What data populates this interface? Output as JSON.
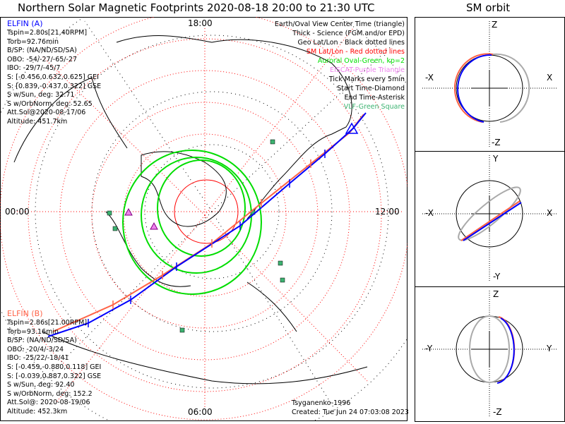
{
  "title": "Northern Solar Magnetic Footprints 2020-08-18 20:00 to 21:30 UTC",
  "sm_title": "SM orbit",
  "map": {
    "time_labels": {
      "top": "18:00",
      "left": "00:00",
      "right": "12:00",
      "bottom": "06:00"
    },
    "credit": "Tsyganenko-1996",
    "created": "Created: Tue Jun 24 07:03:08 2023"
  },
  "elfin_a": {
    "name": "ELFIN (A)",
    "lines": [
      "Tspin=2.80s[21.40RPM]",
      "Torb=92.76min",
      "B/SP: (NA/ND/SD/SA)",
      "OBO: -54/-27/-65/-27",
      "IBO: -29/7/-45/7",
      "S: [-0.456,0.632,0.625] GEI",
      "S: [0.839,-0.437,0.322] GSE",
      "S w/Sun, deg: 32.71",
      "S w/OrbNorm, deg: 52.65",
      "Att.Sol@2020-08-17/06",
      "Altitude: 451.7km"
    ]
  },
  "elfin_b": {
    "name": "ELFIN (B)",
    "lines": [
      "Tspin=2.86s[21.00RPM]",
      "Torb=93.16min",
      "B/SP: (NA/ND/SD/SA)",
      "OBO: -20/4/-3/24",
      "IBO: -25/22/-18/41",
      "S: [-0.459,-0.880,0.118] GEI",
      "S: [-0.039,0.887,0.322] GSE",
      "S w/Sun, deg: 92.40",
      "S w/OrbNorm, deg: 152.2",
      "Att.Sol@: 2020-08-19/06",
      "Altitude: 452.3km"
    ]
  },
  "legend": [
    {
      "text": "Earth/Oval View Center Time (triangle)",
      "color": "#000000"
    },
    {
      "text": "Thick - Science (FGM and/or EPD)",
      "color": "#000000"
    },
    {
      "text": "Geo Lat/Lon - Black dotted lines",
      "color": "#000000"
    },
    {
      "text": "SM Lat/Lon - Red dotted lines",
      "color": "#ff0000"
    },
    {
      "text": "Auroral Oval-Green, kp=2",
      "color": "#00e000"
    },
    {
      "text": "EISCAT-Purple Triangle",
      "color": "#ee82ee"
    },
    {
      "text": "Tick Marks every 5min",
      "color": "#000000"
    },
    {
      "text": "Start Time-Diamond",
      "color": "#000000"
    },
    {
      "text": "End Time-Asterisk",
      "color": "#000000"
    },
    {
      "text": "VLF-Green Square",
      "color": "#3cb371"
    }
  ],
  "colors": {
    "elfin_a": "#0000ff",
    "elfin_b": "#ff6347",
    "sm_grid": "#ff0000",
    "oval": "#00e000"
  },
  "orbit_panels": [
    {
      "top": "Z",
      "bottom": "-Z",
      "left": "-X",
      "right": "X"
    },
    {
      "top": "Y",
      "bottom": "-Y",
      "left": "-X",
      "right": "X"
    },
    {
      "top": "Z",
      "bottom": "-Z",
      "left": "-Y",
      "right": "Y"
    }
  ]
}
